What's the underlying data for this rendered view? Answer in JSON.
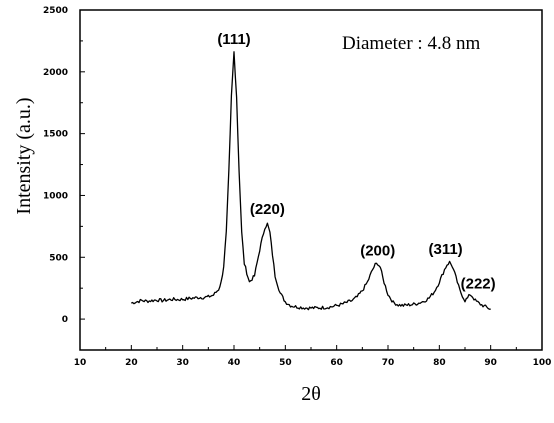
{
  "chart_data": {
    "type": "line",
    "xlabel": "2θ",
    "ylabel": "Intensity (a.u.)",
    "xlim": [
      10,
      100
    ],
    "ylim": [
      -250,
      2500
    ],
    "x_ticks": [
      10,
      20,
      30,
      40,
      50,
      60,
      70,
      80,
      90,
      100
    ],
    "x_tick_labels": [
      "10",
      "20",
      "30",
      "40",
      "50",
      "60",
      "70",
      "80",
      "90",
      "100"
    ],
    "y_ticks": [
      0,
      500,
      1000,
      1500,
      2000,
      2500
    ],
    "y_tick_labels": [
      "0",
      "500",
      "1000",
      "1500",
      "2000",
      "2500"
    ],
    "grid": false,
    "legend": "none",
    "annotation": "Diameter : 4.8 nm",
    "peaks": [
      {
        "label": "(111)",
        "x": 40,
        "y": 2160
      },
      {
        "label": "(220)",
        "x": 46.5,
        "y": 770
      },
      {
        "label": "(200)",
        "x": 68,
        "y": 450
      },
      {
        "label": "(311)",
        "x": 82,
        "y": 460
      },
      {
        "label": "(222)",
        "x": 86,
        "y": 200
      }
    ],
    "series": [
      {
        "color": "#000000",
        "x": [
          20,
          21,
          22,
          23,
          24,
          25,
          26,
          27,
          28,
          29,
          30,
          31,
          32,
          33,
          34,
          35,
          36,
          37,
          37.5,
          38,
          38.5,
          39,
          39.5,
          40,
          40.5,
          41,
          41.5,
          42,
          43,
          44,
          45,
          46,
          46.5,
          47,
          47.5,
          48,
          49,
          50,
          51,
          52,
          53,
          54,
          55,
          56,
          57,
          58,
          59,
          60,
          61,
          62,
          63,
          64,
          65,
          66,
          67,
          67.5,
          68,
          68.5,
          69,
          70,
          71,
          72,
          73,
          74,
          75,
          76,
          77,
          78,
          79,
          80,
          81,
          81.5,
          82,
          82.5,
          83,
          84,
          85,
          85.5,
          86,
          86.5,
          87,
          88,
          89,
          90
        ],
        "y": [
          130,
          140,
          150,
          145,
          150,
          155,
          150,
          155,
          160,
          158,
          160,
          165,
          170,
          175,
          175,
          180,
          195,
          240,
          300,
          430,
          700,
          1200,
          1800,
          2160,
          1800,
          1200,
          700,
          450,
          300,
          350,
          560,
          740,
          770,
          700,
          520,
          350,
          210,
          140,
          110,
          100,
          95,
          90,
          90,
          90,
          92,
          95,
          100,
          110,
          120,
          135,
          150,
          180,
          230,
          300,
          400,
          440,
          450,
          420,
          330,
          200,
          135,
          115,
          110,
          115,
          120,
          130,
          145,
          170,
          220,
          300,
          400,
          440,
          460,
          430,
          370,
          230,
          150,
          170,
          200,
          180,
          150,
          120,
          100,
          80
        ]
      }
    ]
  }
}
